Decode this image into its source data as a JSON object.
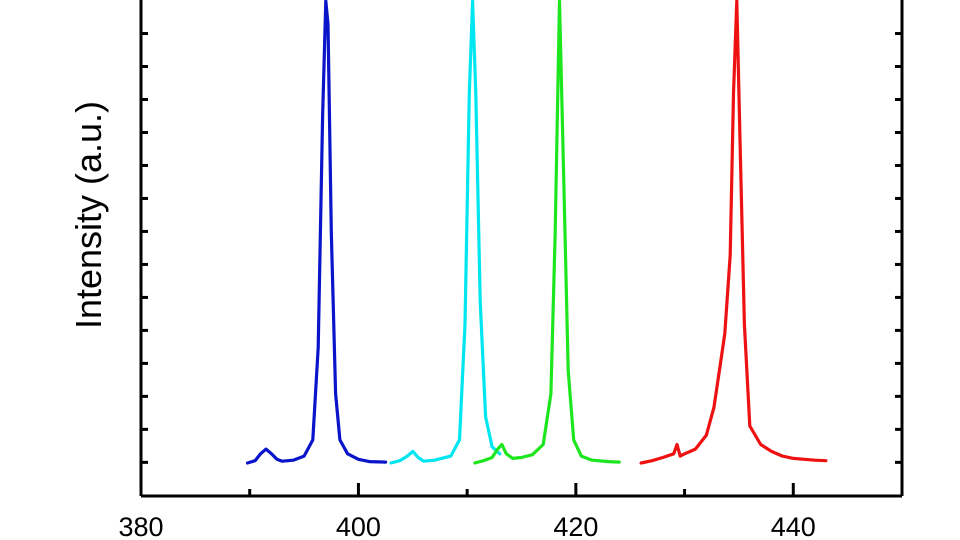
{
  "chart_data": {
    "type": "line",
    "title": "",
    "xlabel": "",
    "ylabel": "Intensity (a.u.)",
    "xlim": [
      380,
      450
    ],
    "ylim": [
      -0.07,
      1.0
    ],
    "x_ticks": [
      380,
      400,
      420,
      440
    ],
    "x_tick_labels": [
      "380",
      "400",
      "420",
      "440"
    ],
    "x_minor_step": 10,
    "y_tick_values": [
      0,
      0.143,
      0.286,
      0.429,
      0.571,
      0.714,
      0.857,
      1.0
    ],
    "y_minor_step": 0.0714,
    "grid": false,
    "legend": "none",
    "series": [
      {
        "color": "#0a14c8",
        "x": [
          389.8,
          390.5,
          391.0,
          391.5,
          392.0,
          392.5,
          393.0,
          394.0,
          395.0,
          395.8,
          396.3,
          396.7,
          397.0,
          397.2,
          397.5,
          397.9,
          398.3,
          399.0,
          400.0,
          401.0,
          402.5
        ],
        "y": [
          0.0,
          0.005,
          0.02,
          0.03,
          0.02,
          0.008,
          0.004,
          0.006,
          0.015,
          0.05,
          0.25,
          0.75,
          1.0,
          0.95,
          0.5,
          0.15,
          0.05,
          0.02,
          0.008,
          0.003,
          0.002
        ]
      },
      {
        "color": "#00e6f0",
        "x": [
          403.0,
          403.8,
          404.5,
          405.0,
          405.5,
          406.0,
          407.0,
          408.5,
          409.3,
          409.8,
          410.2,
          410.5,
          410.8,
          411.2,
          411.7,
          412.3,
          413.0
        ],
        "y": [
          0.0,
          0.005,
          0.015,
          0.025,
          0.012,
          0.004,
          0.006,
          0.015,
          0.05,
          0.3,
          0.8,
          1.0,
          0.8,
          0.35,
          0.1,
          0.035,
          0.02
        ]
      },
      {
        "color": "#1ee61e",
        "x": [
          410.7,
          411.5,
          412.3,
          412.8,
          413.2,
          413.6,
          414.2,
          415.0,
          416.0,
          417.0,
          417.7,
          418.1,
          418.5,
          418.9,
          419.3,
          419.8,
          420.5,
          421.5,
          423.0,
          424.0
        ],
        "y": [
          0.0,
          0.005,
          0.012,
          0.03,
          0.04,
          0.02,
          0.01,
          0.012,
          0.018,
          0.04,
          0.15,
          0.5,
          1.0,
          0.6,
          0.2,
          0.05,
          0.015,
          0.006,
          0.003,
          0.002
        ]
      },
      {
        "color": "#ee1111",
        "x": [
          426.0,
          427.0,
          428.0,
          429.0,
          429.3,
          429.6,
          430.0,
          431.0,
          432.0,
          432.7,
          433.2,
          433.7,
          434.2,
          434.5,
          434.8,
          435.1,
          435.5,
          436.0,
          437.0,
          438.0,
          439.0,
          440.0,
          441.0,
          442.0,
          443.0
        ],
        "y": [
          0.0,
          0.005,
          0.012,
          0.02,
          0.04,
          0.015,
          0.02,
          0.03,
          0.06,
          0.12,
          0.2,
          0.28,
          0.45,
          0.8,
          1.0,
          0.7,
          0.3,
          0.08,
          0.04,
          0.025,
          0.015,
          0.01,
          0.008,
          0.006,
          0.005
        ]
      }
    ]
  }
}
